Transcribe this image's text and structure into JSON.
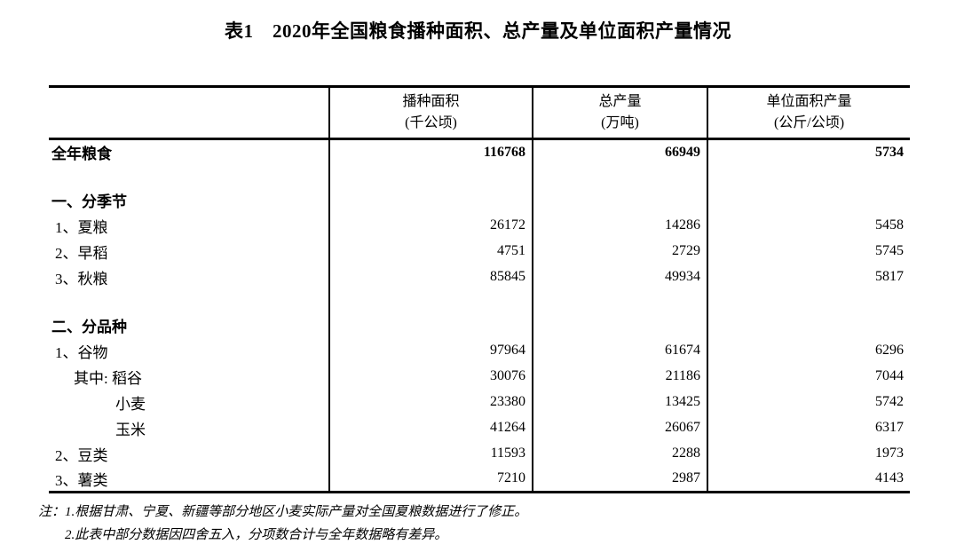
{
  "title": "表1　2020年全国粮食播种面积、总产量及单位面积产量情况",
  "table": {
    "columns": [
      {
        "line1": "播种面积",
        "line2": "(千公顷)"
      },
      {
        "line1": "总产量",
        "line2": "(万吨)"
      },
      {
        "line1": "单位面积产量",
        "line2": "(公斤/公顷)"
      }
    ],
    "rows": [
      {
        "label": "全年粮食",
        "bold": true,
        "bold_values": true,
        "indent": 0,
        "values": [
          "116768",
          "66949",
          "5734"
        ]
      },
      {
        "blank": true
      },
      {
        "label": "一、分季节",
        "bold": true,
        "indent": 0,
        "values": [
          "",
          "",
          ""
        ]
      },
      {
        "label": "1、夏粮",
        "indent": 1,
        "values": [
          "26172",
          "14286",
          "5458"
        ]
      },
      {
        "label": "2、早稻",
        "indent": 1,
        "values": [
          "4751",
          "2729",
          "5745"
        ]
      },
      {
        "label": "3、秋粮",
        "indent": 1,
        "values": [
          "85845",
          "49934",
          "5817"
        ]
      },
      {
        "blank": true
      },
      {
        "label": "二、分品种",
        "bold": true,
        "indent": 0,
        "values": [
          "",
          "",
          ""
        ]
      },
      {
        "label": "1、谷物",
        "indent": 1,
        "values": [
          "97964",
          "61674",
          "6296"
        ]
      },
      {
        "label": "其中: 稻谷",
        "indent": 2,
        "values": [
          "30076",
          "21186",
          "7044"
        ]
      },
      {
        "label": "小麦",
        "indent": 3,
        "values": [
          "23380",
          "13425",
          "5742"
        ]
      },
      {
        "label": "玉米",
        "indent": 3,
        "values": [
          "41264",
          "26067",
          "6317"
        ]
      },
      {
        "label": "2、豆类",
        "indent": 1,
        "values": [
          "11593",
          "2288",
          "1973"
        ]
      },
      {
        "label": "3、薯类",
        "indent": 1,
        "values": [
          "7210",
          "2987",
          "4143"
        ]
      }
    ]
  },
  "notes": {
    "prefix": "注：",
    "items": [
      "1.根据甘肃、宁夏、新疆等部分地区小麦实际产量对全国夏粮数据进行了修正。",
      "2.此表中部分数据因四舍五入，分项数合计与全年数据略有差异。"
    ]
  }
}
